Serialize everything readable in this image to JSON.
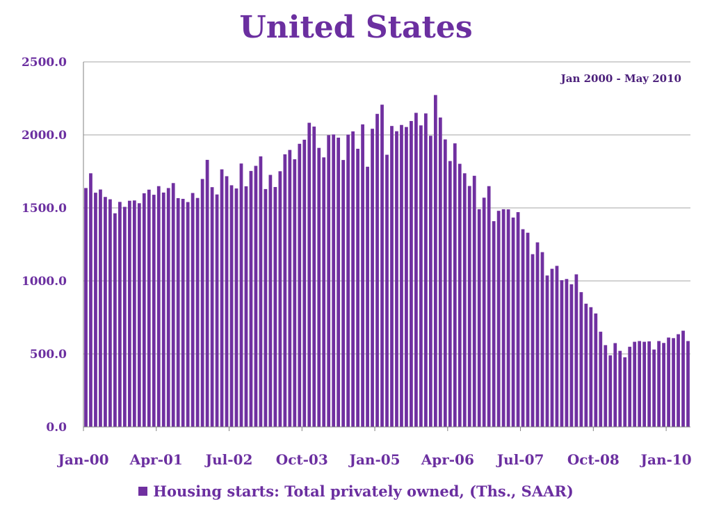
{
  "chart_data": {
    "type": "bar",
    "title": "United States",
    "annotation": "Jan 2000 - May 2010",
    "xlabel": "",
    "ylabel": "",
    "ylim": [
      0,
      2500
    ],
    "y_ticks": [
      "0.0",
      "500.0",
      "1000.0",
      "1500.0",
      "2000.0",
      "2500.0"
    ],
    "x_tick_labels": [
      "Jan-00",
      "Apr-01",
      "Jul-02",
      "Oct-03",
      "Jan-05",
      "Apr-06",
      "Jul-07",
      "Oct-08",
      "Jan-10"
    ],
    "x_tick_interval_months": 15,
    "start_month": "2000-01",
    "grid": true,
    "legend_position": "bottom",
    "colors": {
      "bar": "#7030a0",
      "text": "#6b2fa0",
      "grid": "#a6a6a6"
    },
    "series": [
      {
        "name": "Housing starts: Total privately owned, (Ths., SAAR)",
        "values": [
          1636,
          1737,
          1604,
          1626,
          1575,
          1559,
          1463,
          1541,
          1507,
          1549,
          1551,
          1532,
          1600,
          1625,
          1590,
          1649,
          1605,
          1636,
          1670,
          1567,
          1562,
          1540,
          1602,
          1568,
          1698,
          1829,
          1642,
          1592,
          1764,
          1717,
          1655,
          1633,
          1804,
          1648,
          1753,
          1788,
          1853,
          1629,
          1726,
          1643,
          1751,
          1867,
          1897,
          1833,
          1939,
          1967,
          2083,
          2057,
          1911,
          1846,
          1998,
          2003,
          1981,
          1828,
          2002,
          2024,
          1905,
          2072,
          1782,
          2042,
          2144,
          2207,
          1864,
          2061,
          2025,
          2068,
          2054,
          2095,
          2151,
          2065,
          2147,
          1994,
          2273,
          2119,
          1969,
          1821,
          1942,
          1802,
          1737,
          1650,
          1720,
          1491,
          1570,
          1649,
          1409,
          1480,
          1491,
          1490,
          1434,
          1471,
          1354,
          1330,
          1183,
          1264,
          1197,
          1037,
          1083,
          1103,
          1005,
          1013,
          977,
          1045,
          923,
          844,
          820,
          777,
          652,
          560,
          490,
          574,
          521,
          477,
          549,
          583,
          588,
          583,
          586,
          530,
          588,
          575,
          612,
          608,
          635,
          659,
          588
        ]
      }
    ]
  }
}
